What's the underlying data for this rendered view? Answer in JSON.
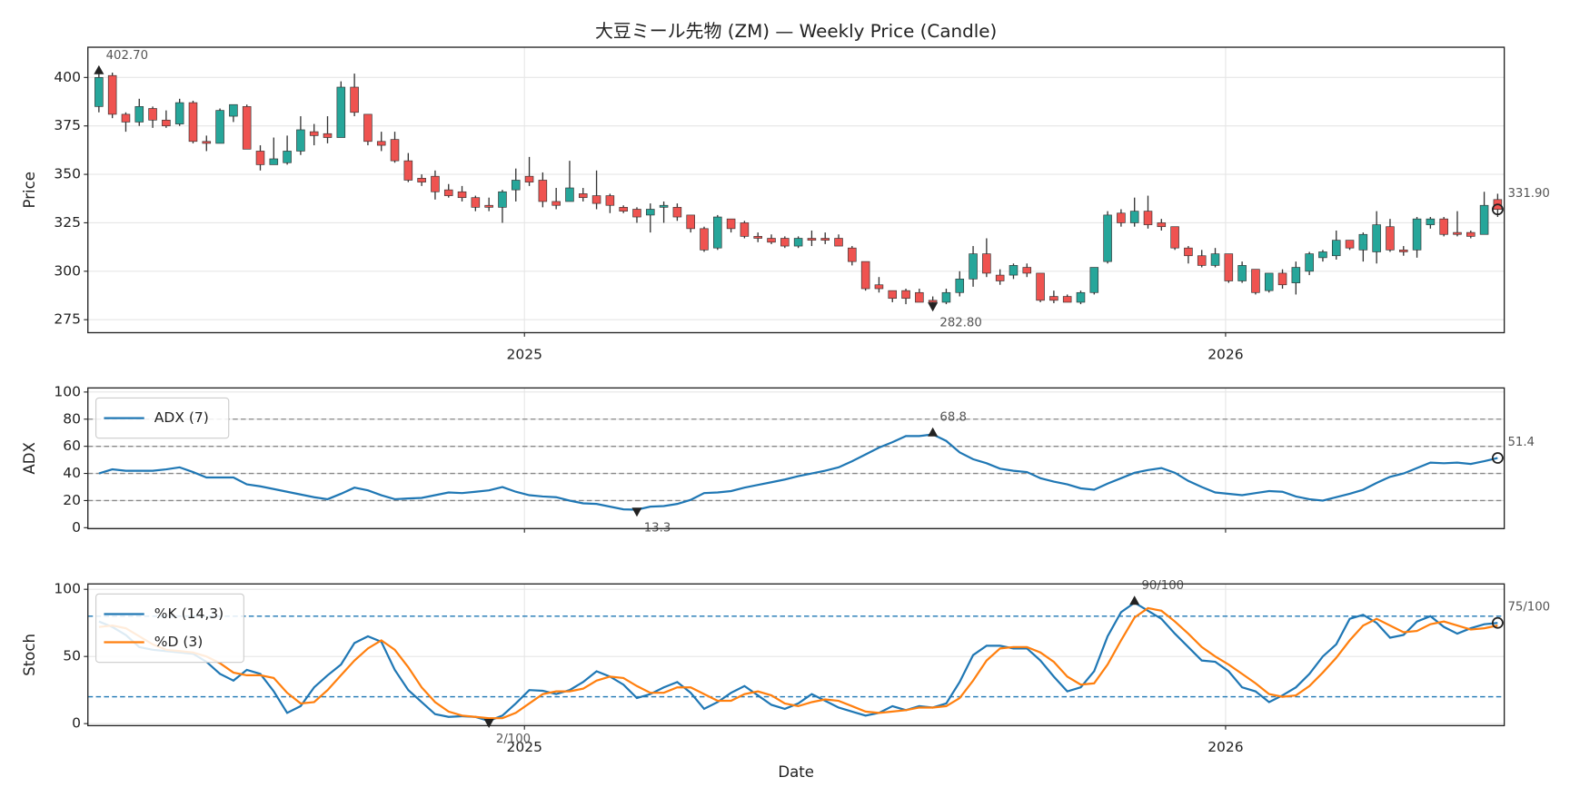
{
  "chart_data": [
    {
      "type": "candlestick",
      "title": "大豆ミール先物 (ZM) — Weekly Price (Candle)",
      "ylabel": "Price",
      "categories": [
        null,
        null,
        null,
        null,
        null,
        null,
        null,
        null,
        null,
        null,
        null,
        null,
        null,
        null,
        null,
        null,
        null,
        null,
        null,
        null,
        null,
        null,
        null,
        null,
        null,
        null,
        null,
        null,
        null,
        null,
        null,
        null,
        null,
        null,
        null,
        null,
        null,
        null,
        null,
        null,
        null,
        null,
        null,
        null,
        null,
        null,
        null,
        null,
        null,
        null,
        null,
        null,
        null,
        null,
        null,
        null,
        null,
        null,
        null,
        null,
        null,
        null,
        null,
        null,
        null,
        null,
        null,
        null,
        null,
        null,
        null,
        null,
        null,
        null,
        null,
        null,
        null,
        null,
        null,
        null,
        null,
        null,
        null,
        null,
        null,
        null,
        null,
        null,
        null,
        null,
        null,
        null,
        null,
        null,
        null,
        null,
        null,
        null,
        null,
        null,
        null,
        null,
        null,
        null,
        null
      ],
      "open": [
        385,
        401,
        381,
        377,
        384,
        378,
        376,
        387,
        367,
        366,
        380,
        385,
        362,
        355,
        356,
        362,
        372,
        371,
        369,
        395,
        381,
        367,
        368,
        357,
        348,
        349,
        342,
        341,
        338,
        334,
        333,
        342,
        349,
        347,
        336,
        336,
        340,
        339,
        339,
        333,
        332,
        329,
        333,
        333,
        329,
        322,
        312,
        327,
        325,
        318,
        317,
        317,
        313,
        317,
        317,
        317,
        312,
        305,
        293,
        290,
        290,
        289,
        285,
        284,
        289,
        296,
        309,
        298,
        298,
        302,
        299,
        287,
        287,
        284,
        289,
        305,
        330,
        325,
        331,
        325,
        323,
        312,
        308,
        303,
        309,
        295,
        301,
        290,
        299,
        294,
        300,
        307,
        308,
        316,
        311,
        310,
        323,
        311,
        311,
        324,
        327,
        320,
        320,
        319,
        337
      ],
      "high": [
        402.7,
        402.5,
        382,
        389,
        385,
        383,
        389,
        388,
        370,
        384,
        386,
        386,
        365,
        369,
        370,
        380,
        376,
        380,
        398,
        402,
        381,
        372,
        372,
        361,
        350,
        352,
        345,
        344,
        339,
        338,
        342,
        353,
        359,
        351,
        343,
        357,
        343,
        352,
        340,
        334,
        333,
        335,
        336,
        335,
        329,
        323,
        329,
        327,
        326,
        320,
        319,
        318,
        318,
        321,
        320,
        319,
        313,
        305,
        297,
        290,
        291,
        291,
        287,
        291,
        300,
        313,
        317,
        301,
        304,
        304,
        299,
        290,
        288,
        290,
        302,
        331,
        332,
        338,
        339,
        327,
        323,
        313,
        311,
        312,
        309,
        305,
        301,
        299,
        301,
        305,
        310,
        311,
        321,
        316,
        320,
        331,
        327,
        313,
        328,
        328,
        328,
        331,
        321,
        341,
        340
      ],
      "low": [
        382,
        379,
        372,
        375,
        374,
        374,
        375,
        366,
        362,
        366,
        377,
        363,
        352,
        355,
        355,
        360,
        365,
        366,
        369,
        380,
        365,
        362,
        356,
        346,
        344,
        337,
        338,
        336,
        331,
        331,
        325,
        336,
        344,
        333,
        332,
        336,
        336,
        332,
        330,
        330,
        325,
        320,
        325,
        326,
        320,
        310,
        311,
        320,
        317,
        315,
        314,
        312,
        312,
        313,
        314,
        313,
        303,
        290,
        289,
        284,
        283,
        284,
        282.8,
        283,
        287,
        292,
        297,
        293,
        296,
        297,
        284,
        283.5,
        284,
        283,
        288,
        304,
        323,
        323,
        322,
        321,
        311,
        304,
        302,
        302,
        294,
        294,
        288,
        289,
        291,
        288,
        298,
        305,
        306,
        311,
        305,
        304,
        310,
        308,
        307,
        322,
        318,
        318,
        317,
        319,
        328
      ],
      "close": [
        400,
        381,
        377,
        385,
        378,
        375,
        387,
        367,
        366,
        383,
        386,
        363,
        355,
        358,
        362,
        373,
        370,
        369,
        395,
        382,
        367,
        365,
        357,
        347,
        346,
        341,
        339,
        338,
        333,
        333,
        341,
        347,
        346,
        336,
        334,
        343,
        338,
        335,
        334,
        331,
        328,
        332,
        334,
        328,
        322,
        311,
        328,
        322,
        318,
        317,
        315,
        313,
        317,
        316,
        316,
        313,
        305,
        291,
        291,
        286,
        286,
        284,
        284,
        289,
        296,
        309,
        299,
        295,
        303,
        299,
        285,
        285,
        284,
        289,
        302,
        329,
        325,
        331,
        324,
        323,
        312,
        308,
        303,
        309,
        295,
        303,
        289,
        299,
        293,
        302,
        309,
        310,
        316,
        312,
        319,
        324,
        311,
        310,
        327,
        327,
        319,
        319,
        318,
        334,
        331.9
      ],
      "up_color": "#26a69a",
      "down_color": "#ef5350",
      "annotations": [
        "402.70",
        "282.80",
        "331.90"
      ],
      "xlim": [
        -0.82,
        104.49
      ],
      "xticks": [
        {
          "value": 31.64,
          "label": "2025"
        },
        {
          "value": 83.77,
          "label": "2026"
        }
      ],
      "ylim": [
        268.3,
        415.6
      ],
      "yticks": [
        275,
        300,
        325,
        350,
        375,
        400
      ],
      "grid": true,
      "show_xtick_labels": true
    },
    {
      "type": "line",
      "ylabel": "ADX",
      "categories": [
        null,
        null,
        null,
        null,
        null,
        null,
        null,
        null,
        null,
        null,
        null,
        null,
        null,
        null,
        null,
        null,
        null,
        null,
        null,
        null,
        null,
        null,
        null,
        null,
        null,
        null,
        null,
        null,
        null,
        null,
        null,
        null,
        null,
        null,
        null,
        null,
        null,
        null,
        null,
        null,
        null,
        null,
        null,
        null,
        null,
        null,
        null,
        null,
        null,
        null,
        null,
        null,
        null,
        null,
        null,
        null,
        null,
        null,
        null,
        null,
        null,
        null,
        null,
        null,
        null,
        null,
        null,
        null,
        null,
        null,
        null,
        null,
        null,
        null,
        null,
        null,
        null,
        null,
        null,
        null,
        null,
        null,
        null,
        null,
        null,
        null,
        null,
        null,
        null,
        null,
        null,
        null,
        null,
        null,
        null,
        null,
        null,
        null,
        null,
        null,
        null,
        null,
        null,
        null,
        null
      ],
      "series": [
        {
          "name": "ADX (7)",
          "color": "#1f77b4",
          "values": [
            40,
            43,
            42,
            42,
            42,
            43,
            44.5,
            41,
            37,
            37,
            37,
            32,
            30.5,
            28.5,
            26.5,
            24.5,
            22.5,
            21,
            25,
            29.5,
            27.5,
            24,
            21,
            21.5,
            22,
            24,
            26,
            25.5,
            26.5,
            27.5,
            30,
            26.5,
            24,
            23,
            22.5,
            20,
            18,
            17.5,
            15.5,
            13.5,
            13.3,
            15.5,
            16,
            17.5,
            20.5,
            25.5,
            26,
            27,
            29.5,
            31.5,
            33.5,
            35.5,
            38,
            40,
            42,
            44.5,
            49,
            54,
            59,
            63,
            67.5,
            67.5,
            68.8,
            64,
            55.5,
            50.5,
            47.5,
            43.5,
            42,
            41,
            36.5,
            34,
            32,
            29,
            28,
            32.5,
            36.5,
            40.5,
            42.5,
            44,
            40.5,
            34.5,
            30,
            26,
            25,
            24,
            25.5,
            27,
            26.5,
            23,
            21,
            20,
            22.5,
            25,
            28,
            33,
            37.5,
            40,
            44,
            48,
            47.5,
            48,
            47,
            49,
            51.4
          ]
        }
      ],
      "annotations": [
        "68.8",
        "13.3",
        "51.4"
      ],
      "hlines": [
        20,
        40,
        60,
        80
      ],
      "hline_color": "#888888",
      "xlim": [
        -0.82,
        104.49
      ],
      "xticks": [
        {
          "value": 31.64,
          "label": "2025"
        },
        {
          "value": 83.77,
          "label": "2026"
        }
      ],
      "ylim": [
        -0.7,
        103
      ],
      "yticks": [
        0,
        20,
        40,
        60,
        80,
        100
      ],
      "grid": true,
      "legend": "upper left",
      "show_xtick_labels": false
    },
    {
      "type": "line",
      "ylabel": "Stoch",
      "xlabel": "Date",
      "categories": [
        null,
        null,
        null,
        null,
        null,
        null,
        null,
        null,
        null,
        null,
        null,
        null,
        null,
        null,
        null,
        null,
        null,
        null,
        null,
        null,
        null,
        null,
        null,
        null,
        null,
        null,
        null,
        null,
        null,
        null,
        null,
        null,
        null,
        null,
        null,
        null,
        null,
        null,
        null,
        null,
        null,
        null,
        null,
        null,
        null,
        null,
        null,
        null,
        null,
        null,
        null,
        null,
        null,
        null,
        null,
        null,
        null,
        null,
        null,
        null,
        null,
        null,
        null,
        null,
        null,
        null,
        null,
        null,
        null,
        null,
        null,
        null,
        null,
        null,
        null,
        null,
        null,
        null,
        null,
        null,
        null,
        null,
        null,
        null,
        null,
        null,
        null,
        null,
        null,
        null,
        null,
        null,
        null,
        null,
        null,
        null,
        null,
        null,
        null,
        null,
        null,
        null,
        null,
        null,
        null
      ],
      "series": [
        {
          "name": "%K (14,3)",
          "color": "#1f77b4",
          "values": [
            76,
            72,
            66,
            57,
            55,
            54,
            53,
            52,
            46,
            37,
            32,
            40,
            37,
            24,
            8,
            13,
            27,
            36,
            44,
            60,
            65,
            61,
            40,
            25,
            16,
            7,
            5,
            5.5,
            5,
            2,
            6,
            15,
            25,
            24.5,
            22,
            25,
            31,
            39,
            35,
            29,
            19,
            22,
            27,
            31,
            23,
            11,
            16,
            23,
            28,
            21,
            14,
            11,
            15,
            22,
            17,
            12,
            9,
            6,
            8,
            13,
            10,
            13,
            12,
            15,
            31,
            51,
            58,
            58,
            56,
            56,
            47,
            35,
            24,
            27,
            39,
            65,
            83,
            90,
            84,
            78,
            67,
            57,
            47,
            46,
            39,
            27,
            24,
            16,
            21,
            27,
            37,
            50,
            59,
            78,
            81,
            75,
            64,
            66,
            76,
            80,
            72,
            67,
            71,
            74,
            75
          ]
        },
        {
          "name": "%D (3)",
          "color": "#ff7f0e",
          "values": [
            72,
            73,
            71,
            65,
            59,
            55,
            54,
            53,
            50,
            45,
            38,
            36,
            36,
            34,
            23,
            15,
            16,
            25,
            36,
            47,
            56,
            62,
            55,
            42,
            27,
            16,
            9,
            6,
            5,
            4,
            4,
            8,
            15,
            22,
            24,
            24,
            26,
            32,
            35,
            34,
            28,
            23,
            23,
            27,
            27,
            22,
            17,
            17,
            22,
            24,
            21,
            15,
            13,
            16,
            18,
            17,
            13,
            9,
            8,
            9,
            10,
            12,
            12,
            13,
            19,
            32,
            47,
            56,
            57,
            57,
            53,
            46,
            35,
            29,
            30,
            44,
            62,
            79,
            86,
            84,
            76,
            67,
            57,
            50,
            44,
            37,
            30,
            22,
            20,
            21,
            28,
            38,
            49,
            62,
            73,
            78,
            73,
            68,
            69,
            74,
            76,
            73,
            70,
            71,
            73
          ]
        }
      ],
      "annotations": [
        "90/100",
        "2/100",
        "75/100"
      ],
      "hlines": [
        20,
        80
      ],
      "hline_color": "#1f77b4",
      "xlim": [
        -0.82,
        104.49
      ],
      "xticks": [
        {
          "value": 31.64,
          "label": "2025"
        },
        {
          "value": 83.77,
          "label": "2026"
        }
      ],
      "ylim": [
        -1.5,
        104
      ],
      "yticks": [
        0,
        50,
        100
      ],
      "grid": true,
      "legend": "upper left",
      "show_xtick_labels": true
    }
  ]
}
